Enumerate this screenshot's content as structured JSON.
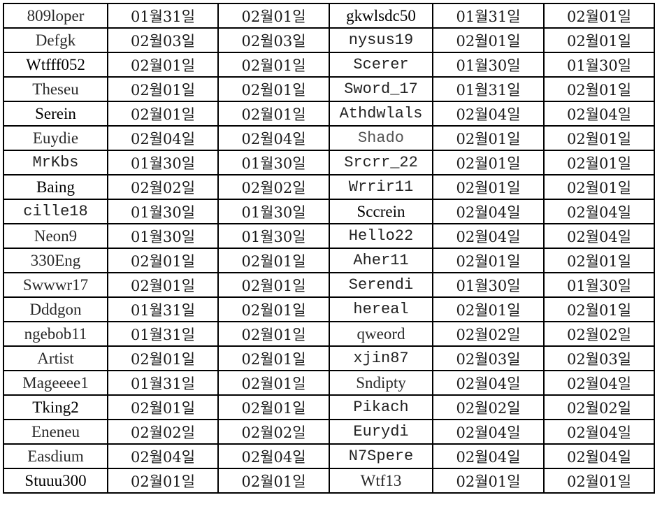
{
  "rows": [
    [
      "809loper",
      "01월31일",
      "02월01일",
      "gkwlsdc50",
      "01월31일",
      "02월01일"
    ],
    [
      "Defgk",
      "02월03일",
      "02월03일",
      "nysus19",
      "02월01일",
      "02월01일"
    ],
    [
      "Wtfff052",
      "02월01일",
      "02월01일",
      "Scerer",
      "01월30일",
      "01월30일"
    ],
    [
      "Theseu",
      "02월01일",
      "02월01일",
      "Sword_17",
      "01월31일",
      "02월01일"
    ],
    [
      "Serein",
      "02월01일",
      "02월01일",
      "Athdwlals",
      "02월04일",
      "02월04일"
    ],
    [
      "Euydie",
      "02월04일",
      "02월04일",
      "Shado",
      "02월01일",
      "02월01일"
    ],
    [
      "MrKbs",
      "01월30일",
      "01월30일",
      "Srcrr_22",
      "02월01일",
      "02월01일"
    ],
    [
      "Baing",
      "02월02일",
      "02월02일",
      "Wrrir11",
      "02월01일",
      "02월01일"
    ],
    [
      "cille18",
      "01월30일",
      "01월30일",
      "Sccrein",
      "02월04일",
      "02월04일"
    ],
    [
      "Neon9",
      "01월30일",
      "01월30일",
      "Hello22",
      "02월04일",
      "02월04일"
    ],
    [
      "330Eng",
      "02월01일",
      "02월01일",
      "Aher11",
      "02월01일",
      "02월01일"
    ],
    [
      "Swwwr17",
      "02월01일",
      "02월01일",
      "Serendi",
      "01월30일",
      "01월30일"
    ],
    [
      "Dddgon",
      "01월31일",
      "02월01일",
      "hereal",
      "02월01일",
      "02월01일"
    ],
    [
      "ngebob11",
      "01월31일",
      "02월01일",
      "qweord",
      "02월02일",
      "02월02일"
    ],
    [
      "Artist",
      "02월01일",
      "02월01일",
      "xjin87",
      "02월03일",
      "02월03일"
    ],
    [
      "Mageeee1",
      "01월31일",
      "02월01일",
      "Sndipty",
      "02월04일",
      "02월04일"
    ],
    [
      "Tking2",
      "02월01일",
      "02월01일",
      "Pikach",
      "02월02일",
      "02월02일"
    ],
    [
      "Eneneu",
      "02월02일",
      "02월02일",
      "Eurydi",
      "02월04일",
      "02월04일"
    ],
    [
      "Easdium",
      "02월04일",
      "02월04일",
      "N7Spere",
      "02월04일",
      "02월04일"
    ],
    [
      "Stuuu300",
      "02월01일",
      "02월01일",
      "Wtf13",
      "02월01일",
      "02월01일"
    ]
  ]
}
